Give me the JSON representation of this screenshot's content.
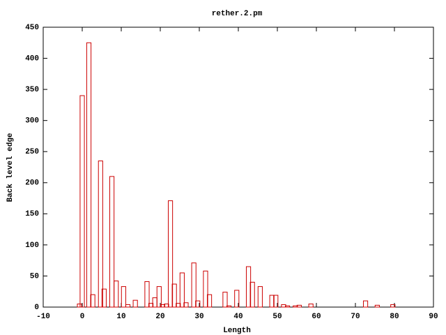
{
  "chart_data": {
    "type": "bar",
    "title": "rether.2.pm",
    "x_label": "Length",
    "y_label": "Back level edge",
    "x": [
      -0.7,
      0,
      1.7,
      2.7,
      4.7,
      5.6,
      7.6,
      8.7,
      10.6,
      11.7,
      13.6,
      16.6,
      17.6,
      18.6,
      19.7,
      20.6,
      21.6,
      22.6,
      23.6,
      24.6,
      25.6,
      26.6,
      28.6,
      29.6,
      31.6,
      32.6,
      36.6,
      37.6,
      39.6,
      42.6,
      43.6,
      45.6,
      48.6,
      49.6,
      51.6,
      52.6,
      54.6,
      55.6,
      58.6,
      72.6,
      75.6,
      79.6
    ],
    "values": [
      5,
      340,
      425,
      20,
      235,
      29,
      210,
      42,
      33,
      4,
      11,
      41,
      6,
      15,
      33,
      4,
      5,
      171,
      37,
      6,
      55,
      7,
      71,
      10,
      58,
      20,
      24,
      2,
      27,
      65,
      40,
      33,
      19,
      19,
      4,
      2,
      2,
      3,
      5,
      10,
      3,
      4
    ],
    "bar_width": 1.1,
    "color": "#cc0000",
    "xlim": [
      -10,
      90
    ],
    "xticks": [
      -10,
      0,
      10,
      20,
      30,
      40,
      50,
      60,
      70,
      80,
      90
    ],
    "ylim": [
      0,
      450
    ],
    "yticks": [
      0,
      50,
      100,
      150,
      200,
      250,
      300,
      350,
      400,
      450
    ]
  }
}
